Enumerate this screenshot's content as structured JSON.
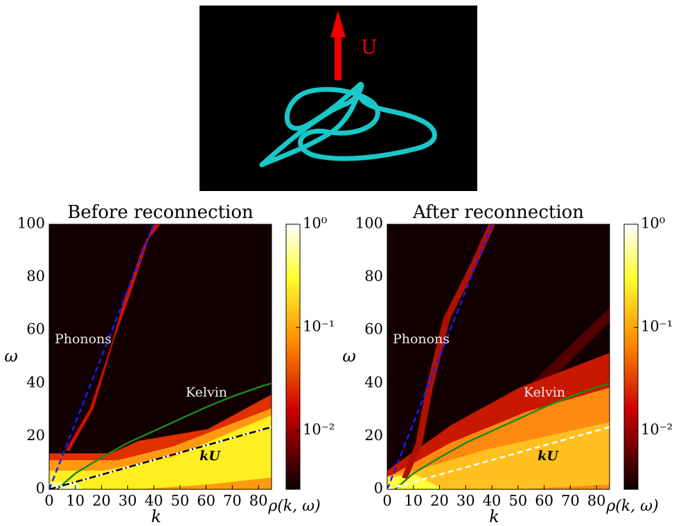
{
  "image": {
    "label": "U"
  },
  "chart_data": [
    {
      "type": "heatmap",
      "title": "Before reconnection",
      "xlabel": "k",
      "ylabel": "ω",
      "xlim": [
        0,
        85
      ],
      "ylim": [
        0,
        100
      ],
      "xticks": [
        0,
        10,
        20,
        30,
        40,
        50,
        60,
        70,
        80
      ],
      "yticks": [
        0,
        20,
        40,
        60,
        80,
        100
      ],
      "colorbar": {
        "label": "ρ(k, ω)",
        "scale": "log",
        "lim": [
          0.0027,
          1
        ],
        "ticks": [
          {
            "value": 1,
            "label": "10⁰"
          },
          {
            "value": 0.1,
            "label": "10⁻¹"
          },
          {
            "value": 0.01,
            "label": "10⁻²"
          }
        ]
      },
      "annotations": [
        "Phonons",
        "Kelvin",
        "kU"
      ],
      "series": [
        {
          "color": "#1a1aff",
          "linestyle": "dashed",
          "x": [
            0,
            40
          ],
          "values": [
            0,
            100
          ]
        },
        {
          "color": "#1a8a1a",
          "linestyle": "solid",
          "x": [
            3,
            10,
            20,
            30,
            40,
            50,
            60,
            70,
            80,
            85
          ],
          "values": [
            0,
            6,
            12,
            17.5,
            22,
            26.5,
            31,
            35,
            38.5,
            40
          ]
        },
        {
          "color": "#000000",
          "linestyle": "dashdot",
          "x": [
            0,
            85
          ],
          "values": [
            0,
            23.5
          ]
        }
      ]
    },
    {
      "type": "heatmap",
      "title": "After reconnection",
      "xlabel": "k",
      "ylabel": "ω",
      "xlim": [
        0,
        85
      ],
      "ylim": [
        0,
        100
      ],
      "xticks": [
        0,
        10,
        20,
        30,
        40,
        50,
        60,
        70,
        80
      ],
      "yticks": [
        0,
        20,
        40,
        60,
        80,
        100
      ],
      "colorbar": {
        "label": "ρ(k, ω)",
        "scale": "log",
        "lim": [
          0.0027,
          1
        ],
        "ticks": [
          {
            "value": 1,
            "label": "10⁰"
          },
          {
            "value": 0.1,
            "label": "10⁻¹"
          },
          {
            "value": 0.01,
            "label": "10⁻²"
          }
        ]
      },
      "annotations": [
        "Phonons",
        "Kelvin",
        "kU"
      ],
      "series": [
        {
          "color": "#1a1aff",
          "linestyle": "dashed",
          "x": [
            0,
            40
          ],
          "values": [
            0,
            100
          ]
        },
        {
          "color": "#1a8a1a",
          "linestyle": "solid",
          "x": [
            3,
            10,
            20,
            30,
            40,
            50,
            60,
            70,
            80,
            85
          ],
          "values": [
            0,
            6,
            12,
            17.5,
            22,
            26.5,
            31,
            35,
            38.5,
            40
          ]
        },
        {
          "color": "#ffffff",
          "linestyle": "dashed",
          "x": [
            0,
            85
          ],
          "values": [
            0,
            23.5
          ]
        }
      ]
    }
  ]
}
